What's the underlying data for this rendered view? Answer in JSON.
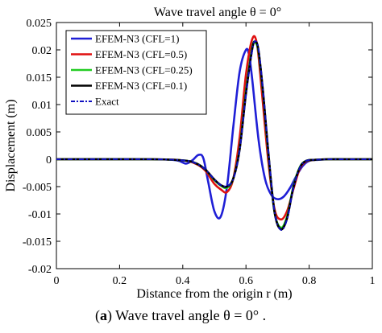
{
  "chart_data": {
    "type": "line",
    "title": "Wave travel angle θ = 0°",
    "xlabel": "Distance from the origin r (m)",
    "ylabel": "Displacement (m)",
    "xlim": [
      0,
      1
    ],
    "ylim": [
      -0.02,
      0.025
    ],
    "x_ticks": [
      "0",
      "0.2",
      "0.4",
      "0.6",
      "0.8",
      "1"
    ],
    "y_ticks": [
      "-0.02",
      "-0.015",
      "-0.01",
      "-0.005",
      "0",
      "0.005",
      "0.01",
      "0.015",
      "0.02",
      "0.025"
    ],
    "grid": false,
    "legend_position": "top-left",
    "series": [
      {
        "name": "EFEM-N3 (CFL=1)",
        "color": "#1f1fd6",
        "style": "solid",
        "x": [
          0,
          0.3,
          0.38,
          0.41,
          0.43,
          0.45,
          0.465,
          0.48,
          0.5,
          0.52,
          0.54,
          0.56,
          0.58,
          0.6,
          0.61,
          0.62,
          0.64,
          0.66,
          0.68,
          0.7,
          0.72,
          0.74,
          0.76,
          0.78,
          0.8,
          0.83,
          0.87,
          0.92,
          1
        ],
        "y": [
          0,
          0,
          -0.0002,
          -0.0008,
          -0.0002,
          0.0008,
          0.0002,
          -0.004,
          -0.0095,
          -0.0105,
          -0.005,
          0.006,
          0.016,
          0.02,
          0.019,
          0.0145,
          0.0035,
          -0.0035,
          -0.0065,
          -0.0073,
          -0.0068,
          -0.0052,
          -0.003,
          -0.0012,
          -0.0003,
          -0.0001,
          0,
          0,
          0
        ]
      },
      {
        "name": "EFEM-N3 (CFL=0.5)",
        "color": "#e01010",
        "style": "solid",
        "x": [
          0,
          0.3,
          0.4,
          0.44,
          0.47,
          0.5,
          0.52,
          0.54,
          0.56,
          0.58,
          0.6,
          0.62,
          0.635,
          0.65,
          0.67,
          0.69,
          0.71,
          0.73,
          0.75,
          0.77,
          0.79,
          0.82,
          0.86,
          0.92,
          1
        ],
        "y": [
          0,
          0,
          -0.0002,
          -0.0008,
          -0.002,
          -0.0045,
          -0.0055,
          -0.006,
          -0.0035,
          0.004,
          0.0155,
          0.022,
          0.021,
          0.0125,
          0.0,
          -0.009,
          -0.011,
          -0.0095,
          -0.0055,
          -0.0018,
          -0.0004,
          -0.0001,
          0,
          0,
          0
        ]
      },
      {
        "name": "EFEM-N3 (CFL=0.25)",
        "color": "#22cc22",
        "style": "solid",
        "x": [
          0,
          0.3,
          0.4,
          0.44,
          0.47,
          0.5,
          0.52,
          0.54,
          0.56,
          0.58,
          0.6,
          0.62,
          0.63,
          0.64,
          0.655,
          0.67,
          0.69,
          0.71,
          0.73,
          0.75,
          0.77,
          0.79,
          0.82,
          0.86,
          0.92,
          1
        ],
        "y": [
          0,
          0,
          -0.0002,
          -0.0007,
          -0.0018,
          -0.0038,
          -0.0048,
          -0.0052,
          -0.0035,
          0.002,
          0.0125,
          0.0205,
          0.0213,
          0.0195,
          0.0115,
          0.0015,
          -0.0095,
          -0.0125,
          -0.0105,
          -0.005,
          -0.0015,
          -0.0003,
          -0.0001,
          0,
          0,
          0
        ]
      },
      {
        "name": "EFEM-N3 (CFL=0.1)",
        "color": "#000000",
        "style": "solid",
        "x": [
          0,
          0.3,
          0.4,
          0.44,
          0.47,
          0.5,
          0.52,
          0.54,
          0.56,
          0.58,
          0.6,
          0.62,
          0.63,
          0.64,
          0.655,
          0.67,
          0.69,
          0.71,
          0.73,
          0.75,
          0.77,
          0.79,
          0.82,
          0.86,
          0.92,
          1
        ],
        "y": [
          0,
          0,
          -0.0002,
          -0.0007,
          -0.0018,
          -0.0037,
          -0.0047,
          -0.005,
          -0.0035,
          0.0018,
          0.012,
          0.0202,
          0.0215,
          0.0198,
          0.0118,
          0.0018,
          -0.0095,
          -0.0128,
          -0.0108,
          -0.0052,
          -0.0016,
          -0.0003,
          -0.0001,
          0,
          0,
          0
        ]
      },
      {
        "name": "Exact",
        "color": "#1010c0",
        "style": "dashdot",
        "x": [
          0,
          0.3,
          0.4,
          0.44,
          0.47,
          0.5,
          0.52,
          0.54,
          0.56,
          0.58,
          0.6,
          0.62,
          0.63,
          0.64,
          0.655,
          0.67,
          0.69,
          0.71,
          0.73,
          0.75,
          0.77,
          0.79,
          0.82,
          0.86,
          0.92,
          1
        ],
        "y": [
          0,
          0,
          -0.0002,
          -0.0007,
          -0.0018,
          -0.0037,
          -0.0047,
          -0.0049,
          -0.0036,
          0.0017,
          0.0118,
          0.02,
          0.0216,
          0.02,
          0.012,
          0.002,
          -0.0094,
          -0.0129,
          -0.011,
          -0.0053,
          -0.0016,
          -0.0003,
          -0.0001,
          0,
          0,
          0
        ]
      }
    ]
  },
  "caption": {
    "prefix": "(",
    "letter": "a",
    "suffix": ") Wave travel angle  θ = 0° ."
  }
}
